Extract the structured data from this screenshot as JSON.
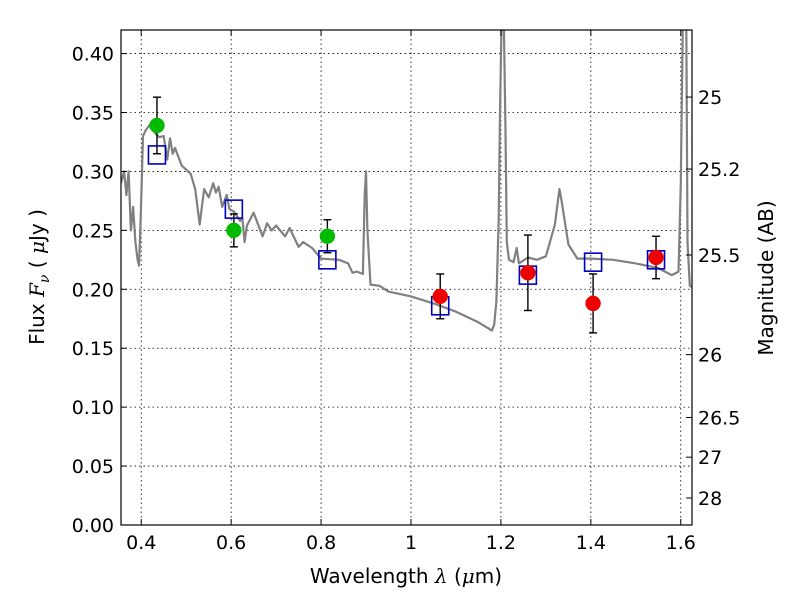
{
  "chart_data": {
    "type": "scatter",
    "title": "",
    "xlabel": "Wavelength  λ (μm)",
    "ylabel": "Flux  F_ν  ( μJy )",
    "ylabel_parts": {
      "pre": "Flux  ",
      "italic": "F",
      "sub": "ν",
      "mid": "  (  ",
      "mu": "μ",
      "post": "Jy )"
    },
    "xlabel_parts": {
      "pre": "Wavelength  ",
      "lambda": "λ",
      "mid": " (",
      "mu": "μ",
      "post": "m)"
    },
    "y2label": "Magnitude (AB)",
    "xlim": [
      0.355,
      1.625
    ],
    "ylim": [
      0.0,
      0.42
    ],
    "grid": true,
    "x_ticks": [
      {
        "value": 0.4,
        "label": "0.4"
      },
      {
        "value": 0.6,
        "label": "0.6"
      },
      {
        "value": 0.8,
        "label": "0.8"
      },
      {
        "value": 1.0,
        "label": "1"
      },
      {
        "value": 1.2,
        "label": "1.2"
      },
      {
        "value": 1.4,
        "label": "1.4"
      },
      {
        "value": 1.6,
        "label": "1.6"
      }
    ],
    "y_ticks": [
      {
        "value": 0.0,
        "label": "0.00"
      },
      {
        "value": 0.05,
        "label": "0.05"
      },
      {
        "value": 0.1,
        "label": "0.10"
      },
      {
        "value": 0.15,
        "label": "0.15"
      },
      {
        "value": 0.2,
        "label": "0.20"
      },
      {
        "value": 0.25,
        "label": "0.25"
      },
      {
        "value": 0.3,
        "label": "0.30"
      },
      {
        "value": 0.35,
        "label": "0.35"
      },
      {
        "value": 0.4,
        "label": "0.40"
      }
    ],
    "y2_ticks": [
      {
        "value": 25,
        "label": "25"
      },
      {
        "value": 25.2,
        "label": "25.2"
      },
      {
        "value": 25.5,
        "label": "25.5"
      },
      {
        "value": 26,
        "label": "26"
      },
      {
        "value": 26.5,
        "label": "26.5"
      },
      {
        "value": 27,
        "label": "27"
      },
      {
        "value": 28,
        "label": "28"
      }
    ],
    "colors": {
      "model": "#808080",
      "green": "#00bb00",
      "red": "#ee0000",
      "square": "#0000bb",
      "errorbar": "#000000"
    },
    "series": [
      {
        "marker": "circle",
        "color": "green",
        "points": [
          {
            "x": 0.435,
            "y": 0.339,
            "yerr": 0.024
          },
          {
            "x": 0.606,
            "y": 0.25,
            "yerr": 0.014
          },
          {
            "x": 0.814,
            "y": 0.245,
            "yerr": 0.014
          }
        ]
      },
      {
        "marker": "circle",
        "color": "red",
        "points": [
          {
            "x": 1.065,
            "y": 0.194,
            "yerr": 0.019
          },
          {
            "x": 1.26,
            "y": 0.214,
            "yerr": 0.032
          },
          {
            "x": 1.405,
            "y": 0.188,
            "yerr": 0.025
          },
          {
            "x": 1.545,
            "y": 0.227,
            "yerr": 0.018
          }
        ]
      },
      {
        "marker": "square",
        "color": "square",
        "points": [
          {
            "x": 0.435,
            "y": 0.314
          },
          {
            "x": 0.606,
            "y": 0.268
          },
          {
            "x": 0.814,
            "y": 0.225
          },
          {
            "x": 1.065,
            "y": 0.186
          },
          {
            "x": 1.26,
            "y": 0.212
          },
          {
            "x": 1.405,
            "y": 0.223
          },
          {
            "x": 1.545,
            "y": 0.225
          }
        ]
      },
      {
        "marker": "line",
        "color": "model",
        "points": [
          [
            0.355,
            0.29
          ],
          [
            0.362,
            0.3
          ],
          [
            0.367,
            0.28
          ],
          [
            0.372,
            0.3
          ],
          [
            0.377,
            0.25
          ],
          [
            0.382,
            0.27
          ],
          [
            0.387,
            0.24
          ],
          [
            0.392,
            0.225
          ],
          [
            0.395,
            0.22
          ],
          [
            0.398,
            0.25
          ],
          [
            0.401,
            0.29
          ],
          [
            0.404,
            0.33
          ],
          [
            0.41,
            0.335
          ],
          [
            0.42,
            0.34
          ],
          [
            0.43,
            0.333
          ],
          [
            0.44,
            0.329
          ],
          [
            0.45,
            0.33
          ],
          [
            0.458,
            0.31
          ],
          [
            0.464,
            0.328
          ],
          [
            0.47,
            0.315
          ],
          [
            0.475,
            0.32
          ],
          [
            0.49,
            0.305
          ],
          [
            0.51,
            0.298
          ],
          [
            0.52,
            0.285
          ],
          [
            0.53,
            0.255
          ],
          [
            0.535,
            0.27
          ],
          [
            0.54,
            0.285
          ],
          [
            0.55,
            0.278
          ],
          [
            0.56,
            0.29
          ],
          [
            0.566,
            0.282
          ],
          [
            0.572,
            0.287
          ],
          [
            0.58,
            0.27
          ],
          [
            0.59,
            0.28
          ],
          [
            0.596,
            0.268
          ],
          [
            0.606,
            0.266
          ],
          [
            0.62,
            0.258
          ],
          [
            0.625,
            0.26
          ],
          [
            0.63,
            0.24
          ],
          [
            0.635,
            0.254
          ],
          [
            0.65,
            0.265
          ],
          [
            0.66,
            0.255
          ],
          [
            0.67,
            0.245
          ],
          [
            0.68,
            0.256
          ],
          [
            0.69,
            0.25
          ],
          [
            0.7,
            0.254
          ],
          [
            0.72,
            0.245
          ],
          [
            0.73,
            0.252
          ],
          [
            0.75,
            0.236
          ],
          [
            0.76,
            0.24
          ],
          [
            0.78,
            0.235
          ],
          [
            0.8,
            0.226
          ],
          [
            0.84,
            0.225
          ],
          [
            0.86,
            0.222
          ],
          [
            0.87,
            0.214
          ],
          [
            0.88,
            0.215
          ],
          [
            0.893,
            0.213
          ],
          [
            0.897,
            0.28
          ],
          [
            0.9,
            0.3
          ],
          [
            0.903,
            0.25
          ],
          [
            0.91,
            0.204
          ],
          [
            0.93,
            0.203
          ],
          [
            0.95,
            0.198
          ],
          [
            1.0,
            0.194
          ],
          [
            1.05,
            0.188
          ],
          [
            1.1,
            0.181
          ],
          [
            1.15,
            0.172
          ],
          [
            1.18,
            0.165
          ],
          [
            1.185,
            0.17
          ],
          [
            1.19,
            0.19
          ],
          [
            1.195,
            0.26
          ],
          [
            1.198,
            0.35
          ],
          [
            1.202,
            0.44
          ],
          [
            1.206,
            0.44
          ],
          [
            1.21,
            0.34
          ],
          [
            1.213,
            0.24
          ],
          [
            1.218,
            0.225
          ],
          [
            1.228,
            0.223
          ],
          [
            1.235,
            0.235
          ],
          [
            1.24,
            0.222
          ],
          [
            1.26,
            0.227
          ],
          [
            1.28,
            0.225
          ],
          [
            1.3,
            0.228
          ],
          [
            1.32,
            0.255
          ],
          [
            1.33,
            0.285
          ],
          [
            1.335,
            0.275
          ],
          [
            1.35,
            0.238
          ],
          [
            1.37,
            0.226
          ],
          [
            1.4,
            0.226
          ],
          [
            1.45,
            0.225
          ],
          [
            1.5,
            0.222
          ],
          [
            1.55,
            0.218
          ],
          [
            1.58,
            0.212
          ],
          [
            1.595,
            0.215
          ],
          [
            1.6,
            0.29
          ],
          [
            1.605,
            0.44
          ],
          [
            1.612,
            0.44
          ],
          [
            1.615,
            0.24
          ],
          [
            1.62,
            0.203
          ],
          [
            1.625,
            0.202
          ]
        ]
      }
    ]
  }
}
